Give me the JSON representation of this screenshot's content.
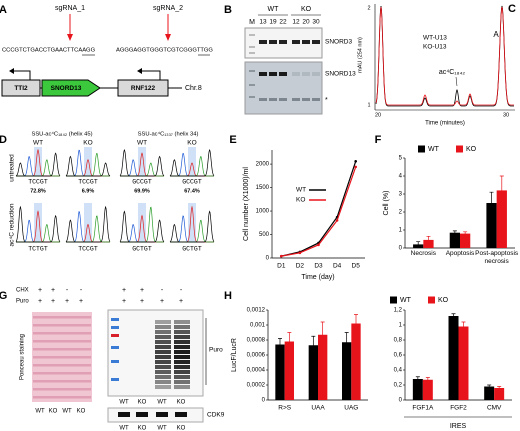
{
  "panels": {
    "A": {
      "letter": "A",
      "sgrna_1": "sgRNA_1",
      "sgrna_2": "sgRNA_2",
      "seq_1": "CCCGTCTGACCTGAACTTCAAGG",
      "seq_2": "AGGGAGGTGGGTCGTCGGGTTGG",
      "genes": [
        "TTI2",
        "SNORD13",
        "RNF122"
      ],
      "chromosome": "Chr.8"
    },
    "B": {
      "letter": "B",
      "groups": [
        "WT",
        "KO"
      ],
      "marker": "M",
      "lanes": [
        "13",
        "19",
        "22",
        "12",
        "20",
        "30"
      ],
      "bands": [
        "SNORD3",
        "SNORD13"
      ],
      "asterisk": "*"
    },
    "C": {
      "letter": "C",
      "legend": [
        "WT-U13",
        "KO-U13"
      ],
      "peak_label": "ac⁴C₁₈₄₂",
      "peak_a": "A",
      "x_label": "Time (minutes)",
      "y_label": "mAU (254 nm)",
      "x_ticks": [
        "20",
        "30"
      ],
      "y_ticks": [
        "2",
        "1"
      ]
    },
    "D": {
      "letter": "D",
      "headers": [
        "SSU-ac⁴C₁₈₄₂ (helix 45)",
        "SSU-ac⁴C₁₃₃₇ (helix 34)"
      ],
      "columns": [
        "WT",
        "KO",
        "WT",
        "KO"
      ],
      "row_labels": [
        "untreated",
        "ac⁴C reduction"
      ],
      "sequences_untreated": [
        "TCCGT",
        "TCCGT",
        "GCCGT",
        "GCCGT"
      ],
      "percents": [
        "72.8%",
        "6.9%",
        "69.9%",
        "67.4%"
      ],
      "sequences_reduction": [
        "TCTGT",
        "TCCGT",
        "GCTGT",
        "GCTGT"
      ]
    },
    "E": {
      "letter": "E"
    },
    "F": {
      "letter": "F"
    },
    "G": {
      "letter": "G",
      "chx": "CHX",
      "puro": "Puro",
      "chx_signs": [
        "+",
        "+",
        "-",
        "-",
        "+",
        "+",
        "-",
        "-"
      ],
      "puro_signs": [
        "+",
        "+",
        "+",
        "+",
        "+",
        "+",
        "+",
        "+"
      ],
      "ponceau": "Ponceau staining",
      "lanes_ponceau": [
        "WT",
        "KO",
        "WT",
        "KO"
      ],
      "lanes_puro": [
        "WT",
        "KO",
        "WT",
        "KO"
      ],
      "lanes_cdk9": [
        "WT",
        "KO",
        "WT",
        "KO"
      ],
      "blots": [
        "Puro",
        "CDK9"
      ]
    },
    "H": {
      "letter": "H",
      "group_label": "IRES"
    }
  },
  "chart_data": [
    {
      "type": "line",
      "categories": [
        "D1",
        "D2",
        "D3",
        "D4",
        "D5"
      ],
      "series": [
        {
          "name": "WT",
          "color": "#000000",
          "values": [
            40,
            130,
            320,
            870,
            2060
          ]
        },
        {
          "name": "KO",
          "color": "#e8141b",
          "values": [
            40,
            110,
            280,
            800,
            1940
          ]
        }
      ],
      "ylim": [
        0,
        2300
      ],
      "yticks": [
        0,
        500,
        1000,
        1500,
        2000
      ],
      "y_label": "Cell number (X1000)/ml",
      "x_label": "Time (day)"
    },
    {
      "type": "bar",
      "categories": [
        "Necrosis",
        "Apoptosis",
        "Post-apoptosis necrosis"
      ],
      "series": [
        {
          "name": "WT",
          "color": "#000000",
          "values": [
            0.2,
            0.85,
            2.5
          ],
          "errors": [
            0.15,
            0.1,
            0.6
          ]
        },
        {
          "name": "KO",
          "color": "#e8141b",
          "values": [
            0.45,
            0.8,
            3.2
          ],
          "errors": [
            0.2,
            0.1,
            0.8
          ]
        }
      ],
      "ylim": [
        0,
        5
      ],
      "yticks": [
        0,
        1,
        2,
        3,
        4,
        5
      ],
      "y_label": "Cell (%)"
    },
    {
      "type": "bar",
      "categories": [
        "R>S",
        "UAA",
        "UAG"
      ],
      "series": [
        {
          "name": "WT",
          "color": "#000000",
          "values": [
            0.00074,
            0.00073,
            0.00077
          ],
          "errors": [
            8e-05,
            0.00012,
            0.00013
          ]
        },
        {
          "name": "KO",
          "color": "#e8141b",
          "values": [
            0.00078,
            0.00087,
            0.00102
          ],
          "errors": [
            0.00012,
            0.00017,
            0.00012
          ]
        }
      ],
      "ylim": [
        0,
        0.0012
      ],
      "yticks": [
        0,
        {
          "value": 0.0002,
          "label": "0,0002"
        },
        {
          "value": 0.0004,
          "label": "0,0004"
        },
        {
          "value": 0.0006,
          "label": "0,0006"
        },
        {
          "value": 0.0008,
          "label": "0,0008"
        },
        {
          "value": 0.001,
          "label": "0,001"
        },
        {
          "value": 0.0012,
          "label": "0,0012"
        }
      ],
      "y_label": "LucF/LucR"
    },
    {
      "type": "bar",
      "categories": [
        "FGF1A",
        "FGF2",
        "CMV"
      ],
      "series": [
        {
          "color": "#000000",
          "values": [
            0.28,
            1.12,
            0.18
          ],
          "errors": [
            0.03,
            0.03,
            0.02
          ]
        },
        {
          "color": "#e8141b",
          "values": [
            0.27,
            0.98,
            0.16
          ],
          "errors": [
            0.03,
            0.06,
            0.02
          ]
        }
      ],
      "ylim": [
        0,
        1.2
      ],
      "yticks": [
        0,
        {
          "value": 0.2,
          "label": "0,2"
        },
        {
          "value": 0.4,
          "label": "0,4"
        },
        {
          "value": 0.6,
          "label": "0,6"
        },
        {
          "value": 0.8,
          "label": "0,8"
        },
        {
          "value": 1,
          "label": "1"
        },
        {
          "value": 1.2,
          "label": "1,2"
        }
      ]
    }
  ]
}
